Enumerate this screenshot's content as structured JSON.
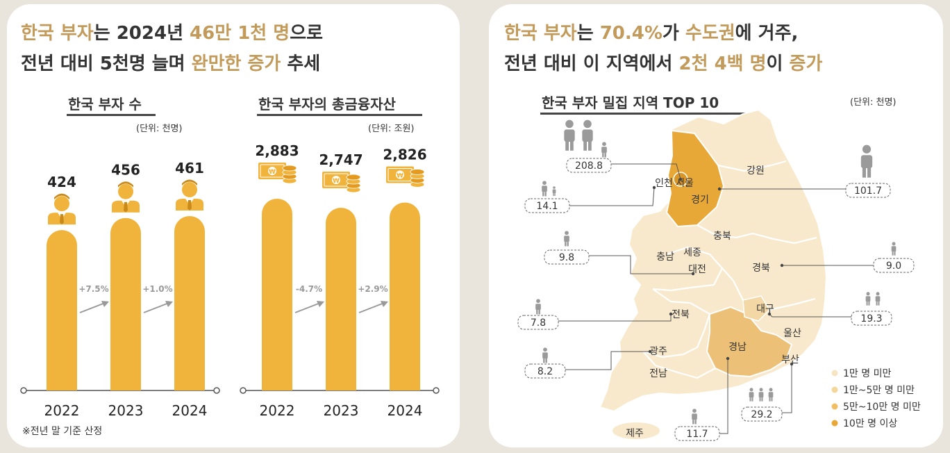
{
  "left": {
    "headline_line1": [
      {
        "text": "한국 부자",
        "hl": true
      },
      {
        "text": "는 2024년 ",
        "hl": false
      },
      {
        "text": "46만 1천 명",
        "hl": true
      },
      {
        "text": "으로",
        "hl": false
      }
    ],
    "headline_line2": [
      {
        "text": "전년 대비 5천명 늘며 ",
        "hl": false
      },
      {
        "text": "완만한 증가",
        "hl": true
      },
      {
        "text": " 추세",
        "hl": false
      }
    ],
    "note": "※전년 말 기준 산정"
  },
  "right": {
    "headline_line1": [
      {
        "text": "한국 부자",
        "hl": true
      },
      {
        "text": "는 ",
        "hl": false
      },
      {
        "text": "70.4%",
        "hl": true
      },
      {
        "text": "가 ",
        "hl": false
      },
      {
        "text": "수도권",
        "hl": true
      },
      {
        "text": "에 거주,",
        "hl": false
      }
    ],
    "headline_line2": [
      {
        "text": "전년 대비 이 지역에서 ",
        "hl": false
      },
      {
        "text": "2천 4백 명",
        "hl": true
      },
      {
        "text": "이 ",
        "hl": false
      },
      {
        "text": "증가",
        "hl": true
      }
    ]
  },
  "colors": {
    "bar": "#f0b43c",
    "accent": "#c29a5a",
    "arrow": "#999999",
    "person": "#9a9a9a",
    "map_lvl1": "#f9e9cc",
    "map_lvl2": "#f3d8a6",
    "map_lvl3": "#edc078",
    "map_lvl4": "#e8a838",
    "legend1": "#f7e4c2",
    "legend2": "#f5d69a",
    "legend3": "#f0be63",
    "legend4": "#e8a838"
  },
  "chart_data": [
    {
      "type": "bar",
      "title": "한국 부자 수",
      "unit": "(단위: 천명)",
      "icon": "businessman-icon",
      "categories": [
        "2022",
        "2023",
        "2024"
      ],
      "values": [
        424,
        456,
        461
      ],
      "value_labels": [
        "424",
        "456",
        "461"
      ],
      "changes": [
        "+7.5%",
        "+1.0%"
      ]
    },
    {
      "type": "bar",
      "title": "한국 부자의 총금융자산",
      "unit": "(단위: 조원)",
      "icon": "money-coins-icon",
      "categories": [
        "2022",
        "2023",
        "2024"
      ],
      "values": [
        2883,
        2747,
        2826
      ],
      "value_labels": [
        "2,883",
        "2,747",
        "2,826"
      ],
      "changes": [
        "-4.7%",
        "+2.9%"
      ]
    },
    {
      "type": "map",
      "title": "한국 부자 밀집 지역 TOP 10",
      "unit": "(단위: 천명)",
      "regions": [
        "인천",
        "서울",
        "경기",
        "강원",
        "충북",
        "충남",
        "세종",
        "대전",
        "경북",
        "전북",
        "대구",
        "울산",
        "경남",
        "광주",
        "부산",
        "전남",
        "제주"
      ],
      "callouts": [
        {
          "region": "서울",
          "value": "208.8",
          "persons": 3
        },
        {
          "region": "경기",
          "value": "101.7",
          "persons": 1
        },
        {
          "region": "인천",
          "value": "14.1",
          "persons": 1
        },
        {
          "region": "대전",
          "value": "9.8",
          "persons": 1
        },
        {
          "region": "경북",
          "value": "9.0",
          "persons": 1
        },
        {
          "region": "전북",
          "value": "7.8",
          "persons": 1
        },
        {
          "region": "대구",
          "value": "19.3",
          "persons": 2
        },
        {
          "region": "광주",
          "value": "8.2",
          "persons": 1
        },
        {
          "region": "부산",
          "value": "29.2",
          "persons": 3
        },
        {
          "region": "경남",
          "value": "11.7",
          "persons": 1
        }
      ],
      "legend": [
        "1만 명 미만",
        "1만~5만 명 미만",
        "5만~10만 명 미만",
        "10만 명 이상"
      ]
    }
  ]
}
